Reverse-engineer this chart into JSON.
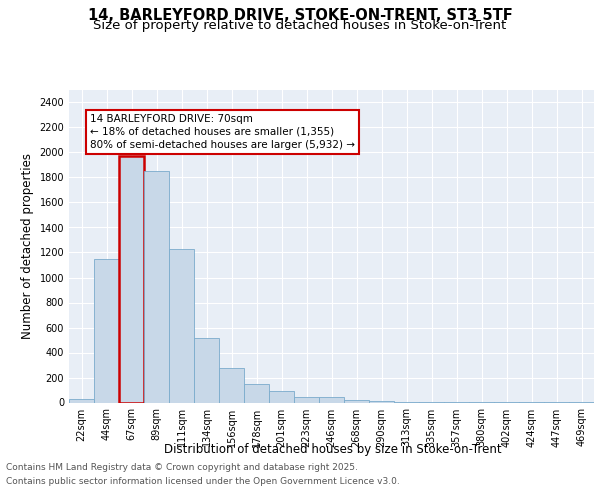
{
  "title_line1": "14, BARLEYFORD DRIVE, STOKE-ON-TRENT, ST3 5TF",
  "title_line2": "Size of property relative to detached houses in Stoke-on-Trent",
  "xlabel": "Distribution of detached houses by size in Stoke-on-Trent",
  "ylabel": "Number of detached properties",
  "categories": [
    "22sqm",
    "44sqm",
    "67sqm",
    "89sqm",
    "111sqm",
    "134sqm",
    "156sqm",
    "178sqm",
    "201sqm",
    "223sqm",
    "246sqm",
    "268sqm",
    "290sqm",
    "313sqm",
    "335sqm",
    "357sqm",
    "380sqm",
    "402sqm",
    "424sqm",
    "447sqm",
    "469sqm"
  ],
  "values": [
    25,
    1150,
    1970,
    1850,
    1230,
    520,
    275,
    150,
    90,
    45,
    45,
    20,
    15,
    8,
    5,
    3,
    2,
    2,
    2,
    2,
    2
  ],
  "bar_color": "#c8d8e8",
  "bar_edge_color": "#7aabcc",
  "highlight_bar_index": 2,
  "highlight_edge_color": "#cc0000",
  "annotation_text": "14 BARLEYFORD DRIVE: 70sqm\n← 18% of detached houses are smaller (1,355)\n80% of semi-detached houses are larger (5,932) →",
  "annotation_box_color": "#ffffff",
  "annotation_box_edge_color": "#cc0000",
  "ylim": [
    0,
    2500
  ],
  "yticks": [
    0,
    200,
    400,
    600,
    800,
    1000,
    1200,
    1400,
    1600,
    1800,
    2000,
    2200,
    2400
  ],
  "bg_color": "#e8eef6",
  "grid_color": "#ffffff",
  "footnote_line1": "Contains HM Land Registry data © Crown copyright and database right 2025.",
  "footnote_line2": "Contains public sector information licensed under the Open Government Licence v3.0.",
  "title_fontsize": 10.5,
  "subtitle_fontsize": 9.5,
  "axis_label_fontsize": 8.5,
  "tick_fontsize": 7,
  "annotation_fontsize": 7.5,
  "footnote_fontsize": 6.5
}
